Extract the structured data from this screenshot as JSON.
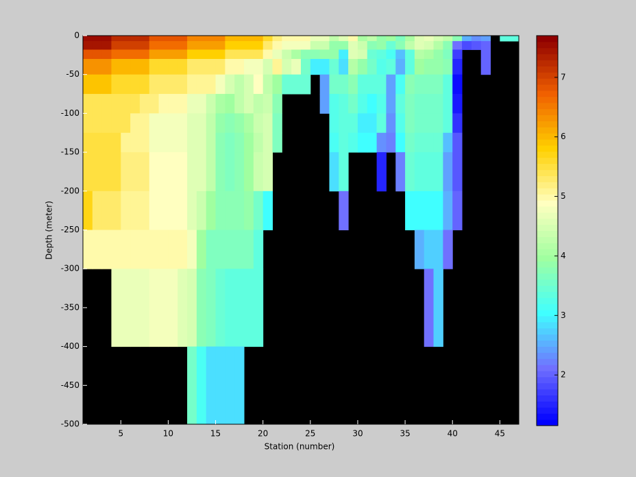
{
  "chart_data": {
    "type": "heatmap",
    "xlabel": "Station (number)",
    "ylabel": "Depth (meter)",
    "x_edges": [
      1,
      2,
      3,
      4,
      5,
      6,
      7,
      8,
      9,
      10,
      11,
      12,
      13,
      14,
      15,
      16,
      17,
      18,
      19,
      20,
      21,
      22,
      23,
      24,
      25,
      26,
      27,
      28,
      29,
      30,
      31,
      32,
      33,
      34,
      35,
      36,
      37,
      38,
      39,
      40,
      41,
      42,
      43,
      44,
      45,
      46,
      47
    ],
    "y_edges": [
      0,
      -7,
      -18,
      -30,
      -50,
      -75,
      -100,
      -125,
      -150,
      -200,
      -250,
      -300,
      -400,
      -500
    ],
    "values": [
      [
        7.5,
        7.5,
        7.5,
        7.2,
        7.2,
        7.2,
        7.2,
        6.8,
        6.8,
        6.8,
        6.8,
        6.4,
        6.4,
        6.4,
        6.4,
        6.0,
        6.0,
        6.0,
        6.0,
        5.6,
        5.2,
        5.0,
        5.0,
        5.0,
        4.7,
        4.7,
        4.3,
        4.6,
        5.0,
        4.1,
        4.3,
        3.9,
        4.0,
        3.7,
        4.1,
        4.6,
        4.7,
        4.5,
        4.3,
        3.8,
        2.5,
        2.3,
        2.4,
        null,
        3.3,
        3.3
      ],
      [
        7.4,
        7.4,
        7.4,
        7.0,
        7.0,
        7.0,
        7.0,
        6.6,
        6.6,
        6.6,
        6.6,
        6.2,
        6.2,
        6.2,
        6.2,
        5.8,
        5.8,
        5.8,
        5.8,
        5.3,
        5.0,
        4.8,
        4.8,
        4.8,
        4.4,
        4.4,
        3.9,
        3.9,
        4.6,
        4.4,
        3.8,
        3.9,
        3.5,
        3.8,
        4.3,
        4.6,
        4.5,
        4.2,
        3.8,
        2.1,
        1.8,
        1.9,
        2.0,
        null,
        null,
        null
      ],
      [
        6.8,
        6.8,
        6.8,
        6.6,
        6.6,
        6.6,
        6.6,
        6.2,
        6.2,
        6.2,
        6.2,
        5.8,
        5.8,
        5.8,
        5.8,
        5.4,
        5.4,
        5.4,
        5.4,
        5.0,
        4.7,
        4.4,
        4.1,
        3.8,
        3.8,
        3.9,
        3.9,
        2.9,
        4.6,
        4.5,
        3.5,
        3.3,
        3.1,
        2.6,
        3.4,
        4.2,
        4.1,
        3.9,
        3.7,
        1.7,
        null,
        null,
        2.0,
        null,
        null,
        null
      ],
      [
        6.3,
        6.3,
        6.3,
        6.0,
        6.0,
        6.0,
        6.0,
        5.6,
        5.6,
        5.6,
        5.6,
        5.3,
        5.3,
        5.3,
        5.3,
        5.0,
        5.0,
        4.8,
        4.8,
        4.5,
        5.1,
        4.5,
        4.7,
        3.6,
        2.9,
        2.9,
        3.5,
        2.8,
        4.2,
        3.9,
        3.6,
        3.2,
        3.3,
        2.5,
        3.3,
        4.0,
        3.9,
        3.9,
        3.8,
        1.5,
        null,
        null,
        2.0,
        null,
        null,
        null
      ],
      [
        5.9,
        5.9,
        5.9,
        5.6,
        5.6,
        5.6,
        5.6,
        5.3,
        5.3,
        5.3,
        5.3,
        5.1,
        5.1,
        5.1,
        4.8,
        4.5,
        4.3,
        4.5,
        4.9,
        4.3,
        4.0,
        3.5,
        3.5,
        3.5,
        null,
        2.4,
        3.6,
        3.6,
        3.8,
        3.4,
        3.3,
        3.3,
        2.4,
        3.1,
        3.8,
        3.7,
        3.7,
        3.7,
        3.4,
        1.3,
        null,
        null,
        null,
        null,
        null,
        null
      ],
      [
        5.4,
        5.4,
        5.4,
        5.4,
        5.4,
        5.4,
        5.2,
        5.2,
        5.0,
        5.0,
        5.0,
        4.7,
        4.7,
        4.4,
        4.1,
        4.0,
        4.3,
        4.5,
        4.3,
        4.4,
        3.8,
        null,
        null,
        null,
        null,
        2.4,
        3.2,
        3.4,
        3.6,
        3.2,
        3.0,
        3.2,
        2.4,
        3.3,
        3.7,
        3.6,
        3.6,
        3.6,
        3.3,
        1.4,
        null,
        null,
        null,
        null,
        null,
        null
      ],
      [
        5.4,
        5.4,
        5.4,
        5.4,
        5.4,
        5.1,
        5.1,
        4.8,
        4.8,
        4.8,
        4.8,
        4.6,
        4.6,
        4.3,
        3.9,
        3.8,
        3.9,
        4.1,
        4.4,
        4.5,
        3.7,
        null,
        null,
        null,
        null,
        null,
        3.2,
        3.4,
        3.3,
        2.9,
        2.9,
        3.3,
        2.3,
        3.2,
        3.7,
        3.6,
        3.6,
        3.6,
        3.3,
        1.6,
        null,
        null,
        null,
        null,
        null,
        null
      ],
      [
        5.5,
        5.5,
        5.5,
        5.5,
        5.1,
        5.1,
        5.1,
        4.8,
        4.8,
        4.8,
        4.8,
        4.6,
        4.6,
        4.3,
        3.8,
        3.7,
        3.8,
        4.0,
        4.3,
        4.5,
        3.7,
        null,
        null,
        null,
        null,
        null,
        3.1,
        3.3,
        3.2,
        3.0,
        3.0,
        2.3,
        2.2,
        3.0,
        3.6,
        3.5,
        3.5,
        3.5,
        2.6,
        1.9,
        null,
        null,
        null,
        null,
        null,
        null
      ],
      [
        5.5,
        5.5,
        5.5,
        5.5,
        5.2,
        5.2,
        5.2,
        4.9,
        4.9,
        4.9,
        4.9,
        4.6,
        4.6,
        4.3,
        3.8,
        3.7,
        3.8,
        4.0,
        4.4,
        4.5,
        null,
        null,
        null,
        null,
        null,
        null,
        2.8,
        3.3,
        null,
        null,
        null,
        1.5,
        null,
        2.2,
        3.5,
        3.4,
        3.4,
        3.4,
        2.4,
        1.9,
        null,
        null,
        null,
        null,
        null,
        null
      ],
      [
        5.7,
        5.3,
        5.3,
        5.3,
        5.1,
        5.1,
        5.1,
        4.9,
        4.9,
        4.9,
        4.9,
        4.6,
        4.4,
        4.0,
        3.8,
        3.8,
        3.8,
        3.9,
        3.6,
        3.0,
        null,
        null,
        null,
        null,
        null,
        null,
        null,
        2.1,
        null,
        null,
        null,
        null,
        null,
        null,
        3.0,
        3.0,
        3.0,
        3.0,
        2.5,
        2.0,
        null,
        null,
        null,
        null,
        null,
        null
      ],
      [
        5.0,
        5.0,
        5.0,
        5.0,
        5.0,
        5.0,
        5.0,
        5.0,
        5.0,
        5.0,
        5.0,
        4.8,
        4.0,
        3.7,
        3.7,
        3.7,
        3.7,
        3.7,
        3.4,
        null,
        null,
        null,
        null,
        null,
        null,
        null,
        null,
        null,
        null,
        null,
        null,
        null,
        null,
        null,
        null,
        2.5,
        2.7,
        2.7,
        2.1,
        null,
        null,
        null,
        null,
        null,
        null,
        null
      ],
      [
        null,
        null,
        null,
        4.7,
        4.7,
        4.7,
        4.7,
        4.8,
        4.8,
        4.8,
        4.6,
        4.5,
        3.8,
        3.7,
        3.5,
        3.4,
        3.4,
        3.4,
        3.4,
        null,
        null,
        null,
        null,
        null,
        null,
        null,
        null,
        null,
        null,
        null,
        null,
        null,
        null,
        null,
        null,
        null,
        2.1,
        2.7,
        null,
        null,
        null,
        null,
        null,
        null,
        null,
        null
      ],
      [
        null,
        null,
        null,
        null,
        null,
        null,
        null,
        null,
        null,
        null,
        null,
        3.6,
        3.1,
        2.8,
        2.8,
        2.8,
        2.8,
        null,
        null,
        null,
        null,
        null,
        null,
        null,
        null,
        null,
        null,
        null,
        null,
        null,
        null,
        null,
        null,
        null,
        null,
        null,
        null,
        null,
        null,
        null,
        null,
        null,
        null,
        null,
        null,
        null
      ]
    ],
    "xlim": [
      1,
      47
    ],
    "ylim": [
      -500,
      0
    ],
    "xticks": [
      5,
      10,
      15,
      20,
      25,
      30,
      35,
      40,
      45
    ],
    "yticks": [
      0,
      -50,
      -100,
      -150,
      -200,
      -250,
      -300,
      -350,
      -400,
      -450,
      -500
    ],
    "clim": [
      1.15,
      7.7
    ],
    "cticks": [
      2,
      3,
      4,
      5,
      6,
      7
    ],
    "colormap": [
      "#0000ff",
      "#7070ff",
      "#40ffff",
      "#a0ffa0",
      "#ffffc0",
      "#ffd000",
      "#f06000",
      "#900000"
    ],
    "missing_color": "#000000"
  }
}
